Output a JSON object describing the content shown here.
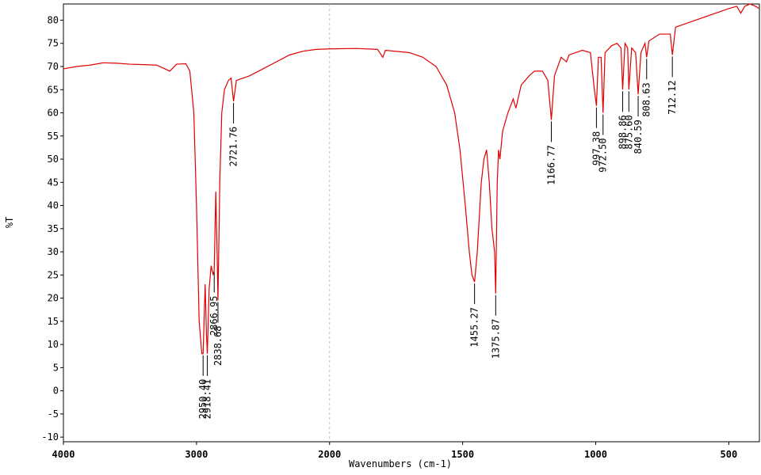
{
  "chart_data": {
    "type": "line",
    "xlabel": "Wavenumbers (cm-1)",
    "ylabel": "%T",
    "color": "#e00000",
    "xlim": [
      4000,
      385
    ],
    "xbreak": 2000,
    "break_compression": 2,
    "xticks": [
      4000,
      3000,
      2000,
      1500,
      1000,
      500
    ],
    "ylim": [
      -11,
      83.5
    ],
    "yticks": [
      -10,
      -5,
      0,
      5,
      10,
      15,
      20,
      25,
      30,
      35,
      40,
      45,
      50,
      55,
      60,
      65,
      70,
      75,
      80
    ],
    "x": [
      4000,
      3900,
      3800,
      3700,
      3600,
      3500,
      3400,
      3300,
      3200,
      3150,
      3080,
      3050,
      3020,
      3000,
      2980,
      2960,
      2950.4,
      2935,
      2925,
      2918.41,
      2905,
      2890,
      2875,
      2866.95,
      2855,
      2845,
      2838.68,
      2825,
      2810,
      2790,
      2760,
      2740,
      2721.76,
      2700,
      2650,
      2600,
      2500,
      2400,
      2300,
      2200,
      2100,
      2000,
      1900,
      1820,
      1800,
      1790,
      1700,
      1650,
      1600,
      1560,
      1530,
      1510,
      1490,
      1475,
      1465,
      1455.27,
      1445,
      1430,
      1420,
      1410,
      1400,
      1390,
      1380,
      1375.87,
      1370,
      1365,
      1360,
      1350,
      1330,
      1310,
      1300,
      1280,
      1250,
      1230,
      1200,
      1180,
      1166.77,
      1155,
      1130,
      1110,
      1100,
      1050,
      1020,
      1005,
      997.38,
      990,
      980,
      972.5,
      965,
      940,
      920,
      905,
      898.86,
      890,
      880,
      875.6,
      865,
      850,
      840.59,
      830,
      815,
      808.63,
      800,
      760,
      720,
      712.12,
      700,
      650,
      600,
      550,
      500,
      470,
      455,
      440,
      420,
      400,
      385
    ],
    "values": [
      69.5,
      70,
      70.3,
      70.8,
      70.7,
      70.5,
      70.4,
      70.3,
      69,
      70.5,
      70.6,
      69,
      60,
      40,
      15,
      8,
      8,
      23,
      12,
      8,
      22,
      27,
      25,
      26,
      43,
      30,
      19.5,
      45,
      60,
      65,
      67,
      67.5,
      62.5,
      67,
      67.5,
      68,
      69.5,
      71,
      72.5,
      73.3,
      73.7,
      73.8,
      73.9,
      73.7,
      72,
      73.5,
      73,
      72,
      70,
      66,
      60,
      52,
      40,
      30,
      25,
      23.5,
      30,
      45,
      50,
      52,
      45,
      35,
      30,
      21,
      45,
      52,
      50,
      56,
      60,
      63,
      61,
      66,
      68,
      69,
      69,
      67,
      58.5,
      68,
      72,
      71,
      72.5,
      73.5,
      73,
      65,
      61.5,
      72,
      72,
      60,
      73,
      74.5,
      75,
      74,
      65,
      75,
      74,
      65,
      74,
      73,
      64,
      73,
      75,
      72,
      75.5,
      77,
      77,
      72.5,
      78.5,
      79.5,
      80.5,
      81.5,
      82.5,
      83,
      81.5,
      83,
      83.5,
      83,
      82.5
    ],
    "annotations": [
      {
        "x": 2950.4,
        "y": 8,
        "label": "2950.40"
      },
      {
        "x": 2918.41,
        "y": 8,
        "label": "2918.41"
      },
      {
        "x": 2866.95,
        "y": 26,
        "label": "2866.95"
      },
      {
        "x": 2838.68,
        "y": 19.5,
        "label": "2838.68"
      },
      {
        "x": 2721.76,
        "y": 62.5,
        "label": "2721.76"
      },
      {
        "x": 1455.27,
        "y": 23.5,
        "label": "1455.27"
      },
      {
        "x": 1375.87,
        "y": 21,
        "label": "1375.87"
      },
      {
        "x": 1166.77,
        "y": 58.5,
        "label": "1166.77"
      },
      {
        "x": 997.38,
        "y": 61.5,
        "label": "997.38"
      },
      {
        "x": 972.5,
        "y": 60,
        "label": "972.50"
      },
      {
        "x": 898.86,
        "y": 65,
        "label": "898.86"
      },
      {
        "x": 875.6,
        "y": 65,
        "label": "875.60"
      },
      {
        "x": 840.59,
        "y": 64,
        "label": "840.59"
      },
      {
        "x": 808.63,
        "y": 72,
        "label": "808.63"
      },
      {
        "x": 712.12,
        "y": 72.5,
        "label": "712.12"
      }
    ]
  }
}
